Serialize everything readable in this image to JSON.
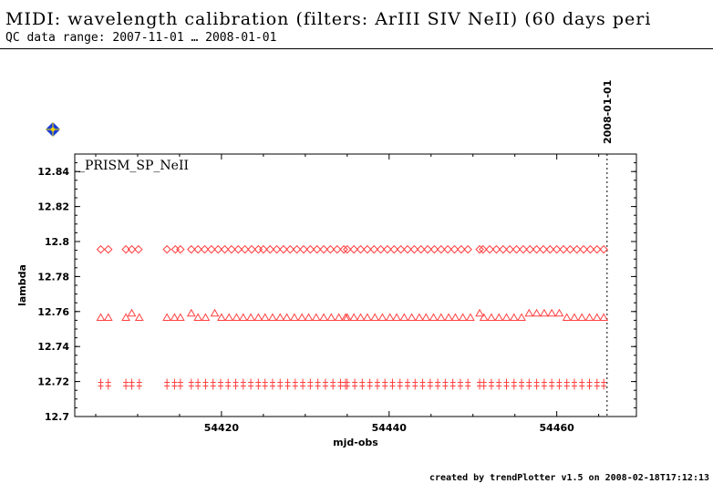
{
  "header": {
    "title": "MIDI: wavelength calibration (filters: ArIII SIV NeII) (60 days peri",
    "subtitle": "QC data range: 2007-11-01 … 2008-01-01"
  },
  "footer": {
    "credit": "created by trendPlotter v1.5 on 2008-02-18T17:12:13"
  },
  "colors": {
    "marker": "#ff4040",
    "axis": "#000000",
    "nav_icon_blue": "#1a3fd6",
    "nav_icon_yellow": "#f2d400"
  },
  "nav_icon": "navigation-arrows-icon",
  "chart_data": {
    "type": "scatter",
    "panel_label": "_PRISM_SP_NeII",
    "xlabel": "mjd-obs",
    "ylabel": "lambda",
    "xlim": [
      54402.5,
      54469.5
    ],
    "ylim": [
      12.7,
      12.85
    ],
    "xticks": [
      54420,
      54440,
      54460
    ],
    "yticks": [
      12.7,
      12.72,
      12.74,
      12.76,
      12.78,
      12.8,
      12.82,
      12.84
    ],
    "ytick_labels": [
      "12.7",
      "12.72",
      "12.74",
      "12.76",
      "12.78",
      "12.8",
      "12.82",
      "12.84"
    ],
    "date_marker": {
      "x": 54466.0,
      "label": "2008-01-01"
    },
    "series": [
      {
        "marker": "diamond",
        "x": [
          54405.6,
          54406.5,
          54408.6,
          54409.3,
          54410.1,
          54413.5,
          54414.5,
          54415.1,
          54416.4,
          54417.2,
          54418.0,
          54418.8,
          54419.6,
          54420.4,
          54421.2,
          54422.0,
          54422.8,
          54423.6,
          54424.4,
          54425.0,
          54425.8,
          54426.6,
          54427.4,
          54428.2,
          54429.0,
          54429.8,
          54430.6,
          54431.4,
          54432.2,
          54433.0,
          54433.8,
          54434.6,
          54435.0,
          54435.8,
          54436.6,
          54437.4,
          54438.2,
          54439.0,
          54439.8,
          54440.6,
          54441.4,
          54442.2,
          54443.0,
          54443.8,
          54444.6,
          54445.4,
          54446.2,
          54447.0,
          54447.8,
          54448.6,
          54449.4,
          54450.8,
          54451.2,
          54452.0,
          54452.8,
          54453.6,
          54454.4,
          54455.2,
          54456.0,
          54456.8,
          54457.6,
          54458.4,
          54459.2,
          54460.0,
          54460.8,
          54461.6,
          54462.4,
          54463.2,
          54464.0,
          54464.8,
          54465.6
        ],
        "y": [
          12.7955,
          12.7955,
          12.7955,
          12.7955,
          12.7955,
          12.7955,
          12.7955,
          12.7955,
          12.7955,
          12.7955,
          12.7955,
          12.7955,
          12.7955,
          12.7955,
          12.7955,
          12.7955,
          12.7955,
          12.7955,
          12.7955,
          12.7955,
          12.7955,
          12.7955,
          12.7955,
          12.7955,
          12.7955,
          12.7955,
          12.7955,
          12.7955,
          12.7955,
          12.7955,
          12.7955,
          12.7955,
          12.7955,
          12.7955,
          12.7955,
          12.7955,
          12.7955,
          12.7955,
          12.7955,
          12.7955,
          12.7955,
          12.7955,
          12.7955,
          12.7955,
          12.7955,
          12.7955,
          12.7955,
          12.7955,
          12.7955,
          12.7955,
          12.7955,
          12.7955,
          12.7955,
          12.7955,
          12.7955,
          12.7955,
          12.7955,
          12.7955,
          12.7955,
          12.7955,
          12.7955,
          12.7955,
          12.7955,
          12.7955,
          12.7955,
          12.7955,
          12.7955,
          12.7955,
          12.7955,
          12.7955,
          12.7955
        ]
      },
      {
        "marker": "triangle",
        "x": [
          54405.6,
          54406.5,
          54408.6,
          54409.3,
          54410.2,
          54413.5,
          54414.4,
          54415.1,
          54416.4,
          54417.2,
          54418.1,
          54419.2,
          54420.0,
          54420.9,
          54421.8,
          54422.6,
          54423.5,
          54424.4,
          54425.2,
          54426.1,
          54427.0,
          54427.8,
          54428.7,
          54429.6,
          54430.4,
          54431.3,
          54432.2,
          54433.1,
          54434.0,
          54434.8,
          54435.0,
          54435.8,
          54436.6,
          54437.4,
          54438.3,
          54439.2,
          54440.1,
          54440.9,
          54441.8,
          54442.7,
          54443.6,
          54444.4,
          54445.3,
          54446.2,
          54447.1,
          54447.9,
          54448.8,
          54449.7,
          54450.8,
          54451.3,
          54452.2,
          54453.1,
          54454.0,
          54454.9,
          54455.8,
          54456.7,
          54457.6,
          54458.5,
          54459.4,
          54460.3,
          54461.2,
          54462.1,
          54463.0,
          54463.9,
          54464.8,
          54465.6
        ],
        "y": [
          12.7565,
          12.7565,
          12.7565,
          12.759,
          12.7565,
          12.7565,
          12.7565,
          12.7565,
          12.759,
          12.7565,
          12.7565,
          12.759,
          12.7565,
          12.7565,
          12.7565,
          12.7565,
          12.7565,
          12.7565,
          12.7565,
          12.7565,
          12.7565,
          12.7565,
          12.7565,
          12.7565,
          12.7565,
          12.7565,
          12.7565,
          12.7565,
          12.7565,
          12.7565,
          12.7565,
          12.7565,
          12.7565,
          12.7565,
          12.7565,
          12.7565,
          12.7565,
          12.7565,
          12.7565,
          12.7565,
          12.7565,
          12.7565,
          12.7565,
          12.7565,
          12.7565,
          12.7565,
          12.7565,
          12.7565,
          12.759,
          12.7565,
          12.7565,
          12.7565,
          12.7565,
          12.7565,
          12.7565,
          12.759,
          12.759,
          12.759,
          12.759,
          12.759,
          12.7565,
          12.7565,
          12.7565,
          12.7565,
          12.7565,
          12.7565
        ]
      },
      {
        "marker": "double-cross",
        "x": [
          54405.6,
          54406.5,
          54408.6,
          54409.3,
          54410.2,
          54413.5,
          54414.4,
          54415.1,
          54416.4,
          54417.2,
          54418.1,
          54419.0,
          54419.9,
          54420.8,
          54421.7,
          54422.6,
          54423.5,
          54424.4,
          54425.2,
          54426.1,
          54427.0,
          54427.9,
          54428.8,
          54429.7,
          54430.6,
          54431.5,
          54432.4,
          54433.3,
          54434.2,
          54434.8,
          54435.0,
          54435.9,
          54436.8,
          54437.7,
          54438.6,
          54439.5,
          54440.4,
          54441.3,
          54442.2,
          54443.1,
          54444.0,
          54444.9,
          54445.8,
          54446.7,
          54447.6,
          54448.5,
          54449.4,
          54450.8,
          54451.3,
          54452.2,
          54453.1,
          54454.0,
          54454.9,
          54455.8,
          54456.7,
          54457.6,
          54458.5,
          54459.4,
          54460.3,
          54461.2,
          54462.1,
          54463.0,
          54463.9,
          54464.8,
          54465.6
        ],
        "y": [
          12.7185,
          12.7185,
          12.7185,
          12.7185,
          12.7185,
          12.7185,
          12.7185,
          12.7185,
          12.7185,
          12.7185,
          12.7185,
          12.7185,
          12.7185,
          12.7185,
          12.7185,
          12.7185,
          12.7185,
          12.7185,
          12.7185,
          12.7185,
          12.7185,
          12.7185,
          12.7185,
          12.7185,
          12.7185,
          12.7185,
          12.7185,
          12.7185,
          12.7185,
          12.7185,
          12.7185,
          12.7185,
          12.7185,
          12.7185,
          12.7185,
          12.7185,
          12.7185,
          12.7185,
          12.7185,
          12.7185,
          12.7185,
          12.7185,
          12.7185,
          12.7185,
          12.7185,
          12.7185,
          12.7185,
          12.7185,
          12.7185,
          12.7185,
          12.7185,
          12.7185,
          12.7185,
          12.7185,
          12.7185,
          12.7185,
          12.7185,
          12.7185,
          12.7185,
          12.7185,
          12.7185,
          12.7185,
          12.7185,
          12.7185,
          12.7185
        ]
      }
    ]
  }
}
